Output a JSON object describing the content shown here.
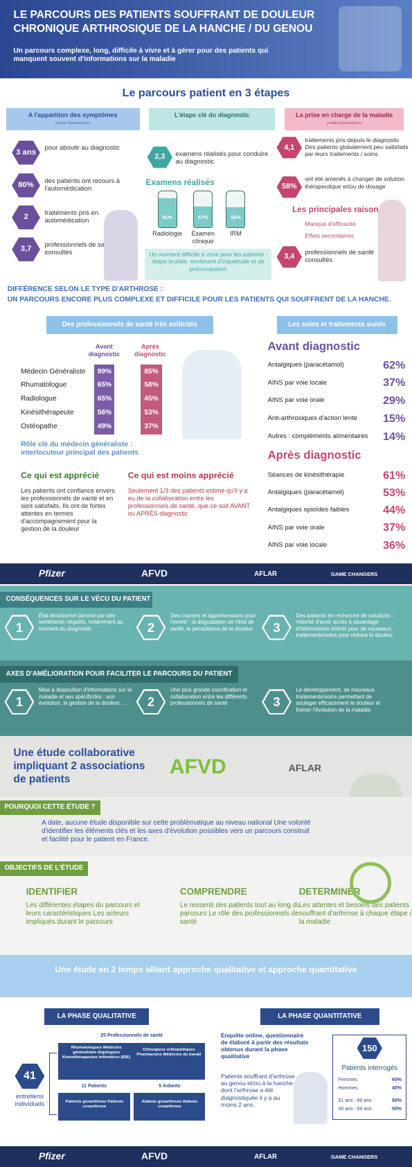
{
  "header": {
    "title_line1": "LE PARCOURS DES PATIENTS SOUFFRANT DE DOULEUR",
    "title_line2": "CHRONIQUE ARTHROSIQUE  DE LA HANCHE / DU GENOU",
    "subtitle": "Un parcours complexe, long, difficile à vivre et à gérer pour des patients qui manquent souvent d'informations sur la maladie"
  },
  "steps_title": "Le parcours patient en 3 étapes",
  "steps": [
    {
      "title": "A l'apparition des symptômes",
      "note": "(AVANT DIAGNOSTIC)",
      "items": [
        {
          "value": "3 ans",
          "text": "pour aboutir au diagnostic"
        },
        {
          "value": "80%",
          "text": "des patients ont recours à l'automédication"
        },
        {
          "value": "2",
          "text": "traitements pris en automédication"
        },
        {
          "value": "3,7",
          "text": "professionnels de santé consultés"
        }
      ]
    },
    {
      "title": "L'étape clé du diagnostic",
      "items": [
        {
          "value": "2,3",
          "text": "examens réalisés pour conduire au diagnostic"
        }
      ],
      "exams_title": "Examens réalisés",
      "exams": [
        {
          "label": "Radiologie",
          "value": 81,
          "value_label": "81%"
        },
        {
          "label": "Examen clinique",
          "value": 57,
          "value_label": "57%"
        },
        {
          "label": "IRM",
          "value": 56,
          "value_label": "56%"
        }
      ],
      "note_box": "Un moment difficile à vivre pour les patients : étape brutale, sentiment d'inquiétude et de préoccupation"
    },
    {
      "title": "La prise en charge de la maladie",
      "note": "(APRÈS DIAGNOSTIC)",
      "items": [
        {
          "value": "4,1",
          "text": "traitements pris depuis le diagnostic Des patients globalement peu satisfaits par leurs traitements / soins"
        },
        {
          "value": "58%",
          "text": "ont été amenés à changer de solution thérapeutique et/ou de dosage"
        }
      ],
      "reasons_title": "Les principales raisons",
      "reasons": [
        "Manque d'efficacité",
        "Effets secondaires"
      ],
      "items_after": [
        {
          "value": "3,4",
          "text": "professionnels de santé consultés"
        }
      ]
    }
  ],
  "difference": {
    "line1": "DIFFÉRENCE SELON LE TYPE D'ARTHROSE  :",
    "line2": "UN PARCOURS ENCORE PLUS COMPLEXE ET DIFFICILE POUR LES PATIENTS QUI SOUFFRENT DE LA HANCHE."
  },
  "professionals": {
    "title": "Des professionnels de santé très sollicités",
    "col_before": "Avant diagnostic",
    "col_after": "Après diagnostic",
    "rows": [
      [
        "Médecin Généraliste",
        "99%",
        "85%"
      ],
      [
        "Rhumatologue",
        "65%",
        "58%"
      ],
      [
        "Radiologue",
        "65%",
        "45%"
      ],
      [
        "Kinésithérapeute",
        "56%",
        "53%"
      ],
      [
        "Ostéopathe",
        "49%",
        "37%"
      ]
    ],
    "role": "Rôle clé du médecin généraliste : interlocuteur principal des patients",
    "appreciated_title": "Ce qui est apprécié",
    "appreciated_text": "Les patients ont confiance envers les professionnels de santé et en sont satisfaits. Ils ont de fortes attentes en termes d'accompagnement pour la gestion de la douleur",
    "less_title": "Ce qui est moins apprécié",
    "less_text": "Seulement 1/3 des patients estime qu'il y a eu de la collaboration entre les professionnels de santé, que ce soit AVANT ou APRÈS diagnostic"
  },
  "care": {
    "title": "Les soins et traitements suivis",
    "before_title": "Avant diagnostic",
    "before": [
      [
        "Antalgiques (paracétamol)",
        "62%"
      ],
      [
        "AINS par voie locale",
        "37%"
      ],
      [
        "AINS par voie orale",
        "29%"
      ],
      [
        "Anti-arthrosiques d'action lente",
        "15%"
      ],
      [
        "Autres : compléments alimentaires",
        "14%"
      ]
    ],
    "after_title": "Après diagnostic",
    "after": [
      [
        "Séances de kinésithérapie",
        "61%"
      ],
      [
        "Antalgiques (paracétamol)",
        "53%"
      ],
      [
        "Antalgiques opioïdes faibles",
        "44%"
      ],
      [
        "AINS par voie orale",
        "37%"
      ],
      [
        "AINS par voie locale",
        "36%"
      ]
    ]
  },
  "logos": {
    "pfizer": "Pfizer",
    "afvd": "AFVD",
    "aflar": "AFLAR",
    "game_changers": "GAME CHANGERS"
  },
  "consequences": {
    "title": "CONSÉQUENCES SUR LE VÉCU DU PATIENT",
    "items": [
      {
        "number": "1",
        "text": "État émotionnel dominé par des sentiments négatifs, notamment au moment du diagnostic"
      },
      {
        "number": "2",
        "text": "Des craintes et appréhensions pour l'avenir : la dégradation de l'état de santé, la persistance de la douleur"
      },
      {
        "number": "3",
        "text": "Des patients en recherche de solutions : Volonté d'avoir accès à davantage d'informations Intérêt pour de nouveaux traitements/soins pour réduire la douleur"
      }
    ]
  },
  "improvements": {
    "title": "AXES D'AMÉLIORATION POUR FACILITER LE PARCOURS DU PATIENT",
    "items": [
      {
        "number": "1",
        "text": "Mise à disposition d'informations sur la maladie et ses spécificités : son évolution, la gestion de la douleur, …"
      },
      {
        "number": "2",
        "text": "Une plus grande coordination et collaboration entre les différents professionnels de santé"
      },
      {
        "number": "3",
        "text": "Le développement, de nouveaux traitements/soins permettant de soulager efficacement la douleur et freiner l'évolution de la maladie"
      }
    ]
  },
  "study": {
    "title": "Une étude collaborative impliquant 2 associations de patients"
  },
  "why": {
    "title": "POURQUOI CETTE ÉTUDE ?",
    "text": "A date, aucune étude disponible sur cette problématique au niveau national Une volonté d'identifier les éléments clés et les axes d'évolution possibles vers un parcours construit et facilité pour le patient en France."
  },
  "objectives": {
    "title": "OBJECTIFS DE L'ÉTUDE",
    "items": [
      {
        "title": "IDENTIFIER",
        "text": "Les différentes étapes du parcours et leurs caractéristiques Les acteurs impliqués durant le parcours"
      },
      {
        "title": "COMPRENDRE",
        "text": "Le ressenti des patients tout au long du parcours Le rôle des professionnels de santé"
      },
      {
        "title": "DETERMINER",
        "text": "Les attentes et besoins des patients souffrant d'arthrose à chaque étape de la maladie"
      }
    ]
  },
  "two_steps": {
    "title": "Une étude en 2 temps alliant approche qualitative et approche quantitative"
  },
  "qualitative": {
    "title": "LA PHASE QUALITATIVE",
    "count": "41",
    "count_label": "entretiens individuels",
    "professionals_title": "25 Professionnels de santé",
    "professionals_left": "Rhumatologues Médecins généralistes Algologues Kinésithérapeutes Infirmières (IDE)",
    "professionals_right": "Chirurgiens orthopédiques Pharmaciens Médecins du travail",
    "patients_title": "11 Patients",
    "patients": "Patients gonarthrose Patients coxarthrose",
    "caregivers_title": "5 Aidants",
    "caregivers": "Aidants gonarthrose Aidants coxarthrose"
  },
  "quantitative": {
    "title": "LA PHASE QUANTITATIVE",
    "text1": "Enquête online, questionnaire de élaboré à partir des résultats obtenus durant la phase qualitative",
    "text2": "Patients souffrant d'arthrose au genou et/ou à la hanche, dont l'arthrose a été diagnostiquée il y a au moins 2 ans.",
    "count": "150",
    "count_label": "Patients interrogés",
    "rows": [
      [
        "Femmes",
        "60%"
      ],
      [
        "Hommes",
        "40%"
      ],
      [
        "61 ans - 80 ans",
        "50%"
      ],
      [
        "40 ans - 60 ans",
        "50%"
      ]
    ]
  }
}
